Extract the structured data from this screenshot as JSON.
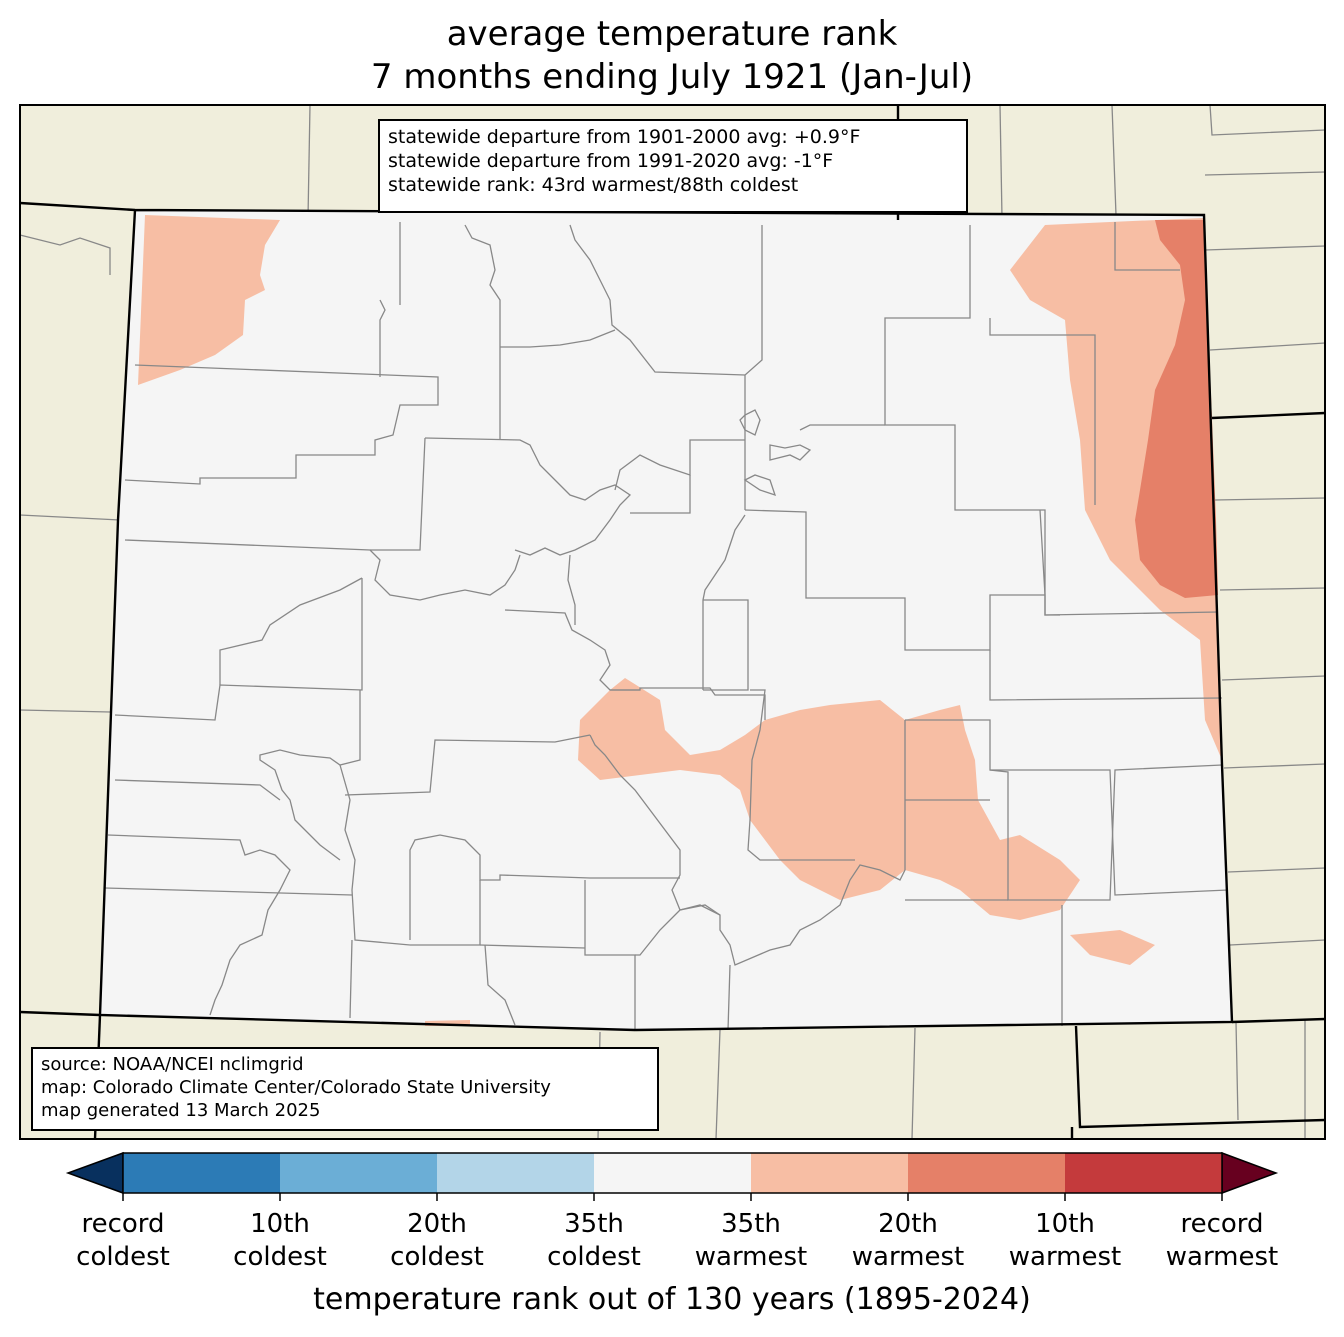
{
  "title": {
    "line1": "average temperature rank",
    "line2": "7 months ending July 1921 (Jan-Jul)"
  },
  "stats": {
    "line1": "statewide departure from 1901-2000 avg: +0.9°F",
    "line2": "statewide departure from 1991-2020 avg: -1°F",
    "line3": "statewide rank: 43rd warmest/88th coldest"
  },
  "source": {
    "line1": "source: NOAA/NCEI nclimgrid",
    "line2": "map: Colorado Climate Center/Colorado State University",
    "line3": "map generated 13 March 2025"
  },
  "colorbar": {
    "title": "temperature rank out of 130 years (1895-2024)",
    "extend_low_color": "#08305e",
    "extend_high_color": "#67001f",
    "segments": [
      "#2c7bb6",
      "#6baed6",
      "#b3d5e8",
      "#f5f5f5",
      "#f7bea4",
      "#e58068",
      "#c43a3c"
    ],
    "ticks": [
      {
        "line1": "record",
        "line2": "coldest"
      },
      {
        "line1": "10th",
        "line2": "coldest"
      },
      {
        "line1": "20th",
        "line2": "coldest"
      },
      {
        "line1": "35th",
        "line2": "coldest"
      },
      {
        "line1": "35th",
        "line2": "warmest"
      },
      {
        "line1": "20th",
        "line2": "warmest"
      },
      {
        "line1": "10th",
        "line2": "warmest"
      },
      {
        "line1": "record",
        "line2": "warmest"
      }
    ]
  },
  "map_colors": {
    "land": "#f0eedc",
    "state_fill": "#f5f5f5",
    "rank_35th_warmest": "#f7bea4",
    "rank_20th_warmest": "#e58068",
    "county_lines": "#888888"
  }
}
